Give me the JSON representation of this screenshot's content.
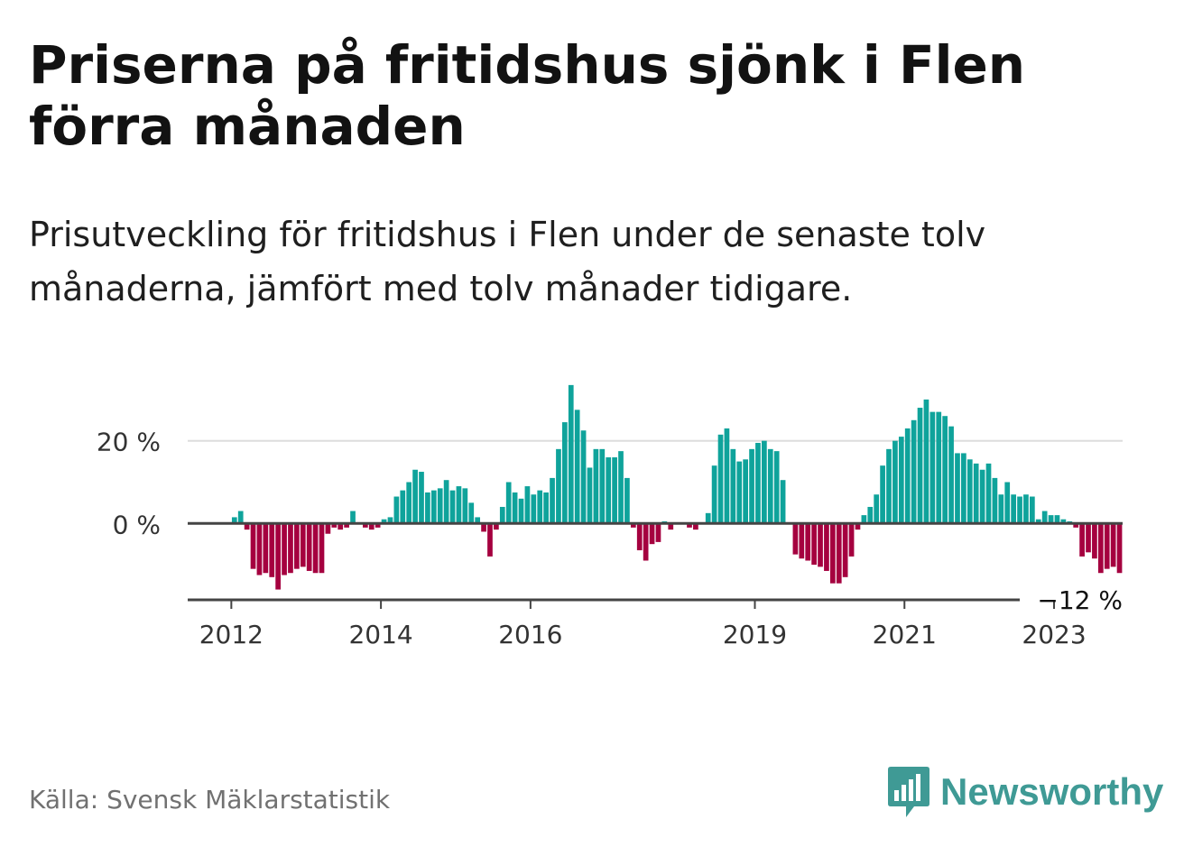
{
  "title": "Priserna på fritidshus sjönk i Flen förra månaden",
  "subtitle": "Prisutveckling för fritidshus i Flen under de senaste tolv månaderna, jämfört med tolv månader tidigare.",
  "source": "Källa: Svensk Mäklarstatistik",
  "logo": {
    "text": "Newsworthy",
    "icon": "bar-chart-speech-bubble-icon"
  },
  "colors": {
    "positive": "#0fa39b",
    "negative": "#a5003f",
    "baseline": "#444444",
    "grid": "#dddddd",
    "logo": "#3f9a95"
  },
  "chart_data": {
    "type": "bar",
    "x_start": "2011-06",
    "x_end": "2023-11",
    "x_ticks": [
      {
        "date": "2012-01",
        "label": "2012"
      },
      {
        "date": "2014-01",
        "label": "2014"
      },
      {
        "date": "2016-01",
        "label": "2016"
      },
      {
        "date": "2019-01",
        "label": "2019"
      },
      {
        "date": "2021-01",
        "label": "2021"
      },
      {
        "date": "2023-01",
        "label": "2023"
      }
    ],
    "y_ticks": [
      {
        "value": 0,
        "label": "0 %"
      },
      {
        "value": 20,
        "label": "20 %"
      }
    ],
    "ylim": [
      -18.5,
      35
    ],
    "grid": true,
    "last_value_label": "−12 %",
    "series": [
      {
        "values": [
          [
            2012,
            1,
            1.5
          ],
          [
            2012,
            2,
            3
          ],
          [
            2012,
            3,
            -1.5
          ],
          [
            2012,
            4,
            -11
          ],
          [
            2012,
            5,
            -12.5
          ],
          [
            2012,
            6,
            -12
          ],
          [
            2012,
            7,
            -13
          ],
          [
            2012,
            8,
            -16
          ],
          [
            2012,
            9,
            -12.5
          ],
          [
            2012,
            10,
            -12
          ],
          [
            2012,
            11,
            -11
          ],
          [
            2012,
            12,
            -10.5
          ],
          [
            2013,
            1,
            -11.5
          ],
          [
            2013,
            2,
            -12
          ],
          [
            2013,
            3,
            -12
          ],
          [
            2013,
            4,
            -2.5
          ],
          [
            2013,
            5,
            -1
          ],
          [
            2013,
            6,
            -1.5
          ],
          [
            2013,
            7,
            -1
          ],
          [
            2013,
            8,
            3
          ],
          [
            2013,
            10,
            -1
          ],
          [
            2013,
            11,
            -1.5
          ],
          [
            2013,
            12,
            -1
          ],
          [
            2014,
            1,
            1
          ],
          [
            2014,
            2,
            1.5
          ],
          [
            2014,
            3,
            6.5
          ],
          [
            2014,
            4,
            8
          ],
          [
            2014,
            5,
            10
          ],
          [
            2014,
            6,
            13
          ],
          [
            2014,
            7,
            12.5
          ],
          [
            2014,
            8,
            7.5
          ],
          [
            2014,
            9,
            8
          ],
          [
            2014,
            10,
            8.5
          ],
          [
            2014,
            11,
            10.5
          ],
          [
            2014,
            12,
            8
          ],
          [
            2015,
            1,
            9
          ],
          [
            2015,
            2,
            8.5
          ],
          [
            2015,
            3,
            5
          ],
          [
            2015,
            4,
            1.5
          ],
          [
            2015,
            5,
            -2
          ],
          [
            2015,
            6,
            -8
          ],
          [
            2015,
            7,
            -1.5
          ],
          [
            2015,
            8,
            4
          ],
          [
            2015,
            9,
            10
          ],
          [
            2015,
            10,
            7.5
          ],
          [
            2015,
            11,
            6
          ],
          [
            2015,
            12,
            9
          ],
          [
            2016,
            1,
            7
          ],
          [
            2016,
            2,
            8
          ],
          [
            2016,
            3,
            7.5
          ],
          [
            2016,
            4,
            11
          ],
          [
            2016,
            5,
            18
          ],
          [
            2016,
            6,
            24.5
          ],
          [
            2016,
            7,
            33.5
          ],
          [
            2016,
            8,
            27.5
          ],
          [
            2016,
            9,
            22.5
          ],
          [
            2016,
            10,
            13.5
          ],
          [
            2016,
            11,
            18
          ],
          [
            2016,
            12,
            18
          ],
          [
            2017,
            1,
            16
          ],
          [
            2017,
            2,
            16
          ],
          [
            2017,
            3,
            17.5
          ],
          [
            2017,
            4,
            11
          ],
          [
            2017,
            5,
            -1
          ],
          [
            2017,
            6,
            -6.5
          ],
          [
            2017,
            7,
            -9
          ],
          [
            2017,
            8,
            -5
          ],
          [
            2017,
            9,
            -4.5
          ],
          [
            2017,
            10,
            0.5
          ],
          [
            2017,
            11,
            -1.5
          ],
          [
            2018,
            2,
            -1
          ],
          [
            2018,
            3,
            -1.5
          ],
          [
            2018,
            5,
            2.5
          ],
          [
            2018,
            6,
            14
          ],
          [
            2018,
            7,
            21.5
          ],
          [
            2018,
            8,
            23
          ],
          [
            2018,
            9,
            18
          ],
          [
            2018,
            10,
            15
          ],
          [
            2018,
            11,
            15.5
          ],
          [
            2018,
            12,
            18
          ],
          [
            2019,
            1,
            19.5
          ],
          [
            2019,
            2,
            20
          ],
          [
            2019,
            3,
            18
          ],
          [
            2019,
            4,
            17.5
          ],
          [
            2019,
            5,
            10.5
          ],
          [
            2019,
            7,
            -7.5
          ],
          [
            2019,
            8,
            -8.5
          ],
          [
            2019,
            9,
            -9
          ],
          [
            2019,
            10,
            -10
          ],
          [
            2019,
            11,
            -10.5
          ],
          [
            2019,
            12,
            -11.5
          ],
          [
            2020,
            1,
            -14.5
          ],
          [
            2020,
            2,
            -14.5
          ],
          [
            2020,
            3,
            -13
          ],
          [
            2020,
            4,
            -8
          ],
          [
            2020,
            5,
            -1.5
          ],
          [
            2020,
            6,
            2
          ],
          [
            2020,
            7,
            4
          ],
          [
            2020,
            8,
            7
          ],
          [
            2020,
            9,
            14
          ],
          [
            2020,
            10,
            18
          ],
          [
            2020,
            11,
            20
          ],
          [
            2020,
            12,
            21
          ],
          [
            2021,
            1,
            23
          ],
          [
            2021,
            2,
            25
          ],
          [
            2021,
            3,
            28
          ],
          [
            2021,
            4,
            30
          ],
          [
            2021,
            5,
            27
          ],
          [
            2021,
            6,
            27
          ],
          [
            2021,
            7,
            26
          ],
          [
            2021,
            8,
            23.5
          ],
          [
            2021,
            9,
            17
          ],
          [
            2021,
            10,
            17
          ],
          [
            2021,
            11,
            15.5
          ],
          [
            2021,
            12,
            14.5
          ],
          [
            2022,
            1,
            13
          ],
          [
            2022,
            2,
            14.5
          ],
          [
            2022,
            3,
            11
          ],
          [
            2022,
            4,
            7
          ],
          [
            2022,
            5,
            10
          ],
          [
            2022,
            6,
            7
          ],
          [
            2022,
            7,
            6.5
          ],
          [
            2022,
            8,
            7
          ],
          [
            2022,
            9,
            6.5
          ],
          [
            2022,
            10,
            1
          ],
          [
            2022,
            11,
            3
          ],
          [
            2022,
            12,
            2
          ],
          [
            2023,
            1,
            2
          ],
          [
            2023,
            2,
            1
          ],
          [
            2023,
            3,
            0.5
          ],
          [
            2023,
            4,
            -1
          ],
          [
            2023,
            5,
            -8
          ],
          [
            2023,
            6,
            -7
          ],
          [
            2023,
            7,
            -8.5
          ],
          [
            2023,
            8,
            -12
          ],
          [
            2023,
            9,
            -11
          ],
          [
            2023,
            10,
            -10.5
          ],
          [
            2023,
            11,
            -12
          ]
        ]
      }
    ]
  }
}
